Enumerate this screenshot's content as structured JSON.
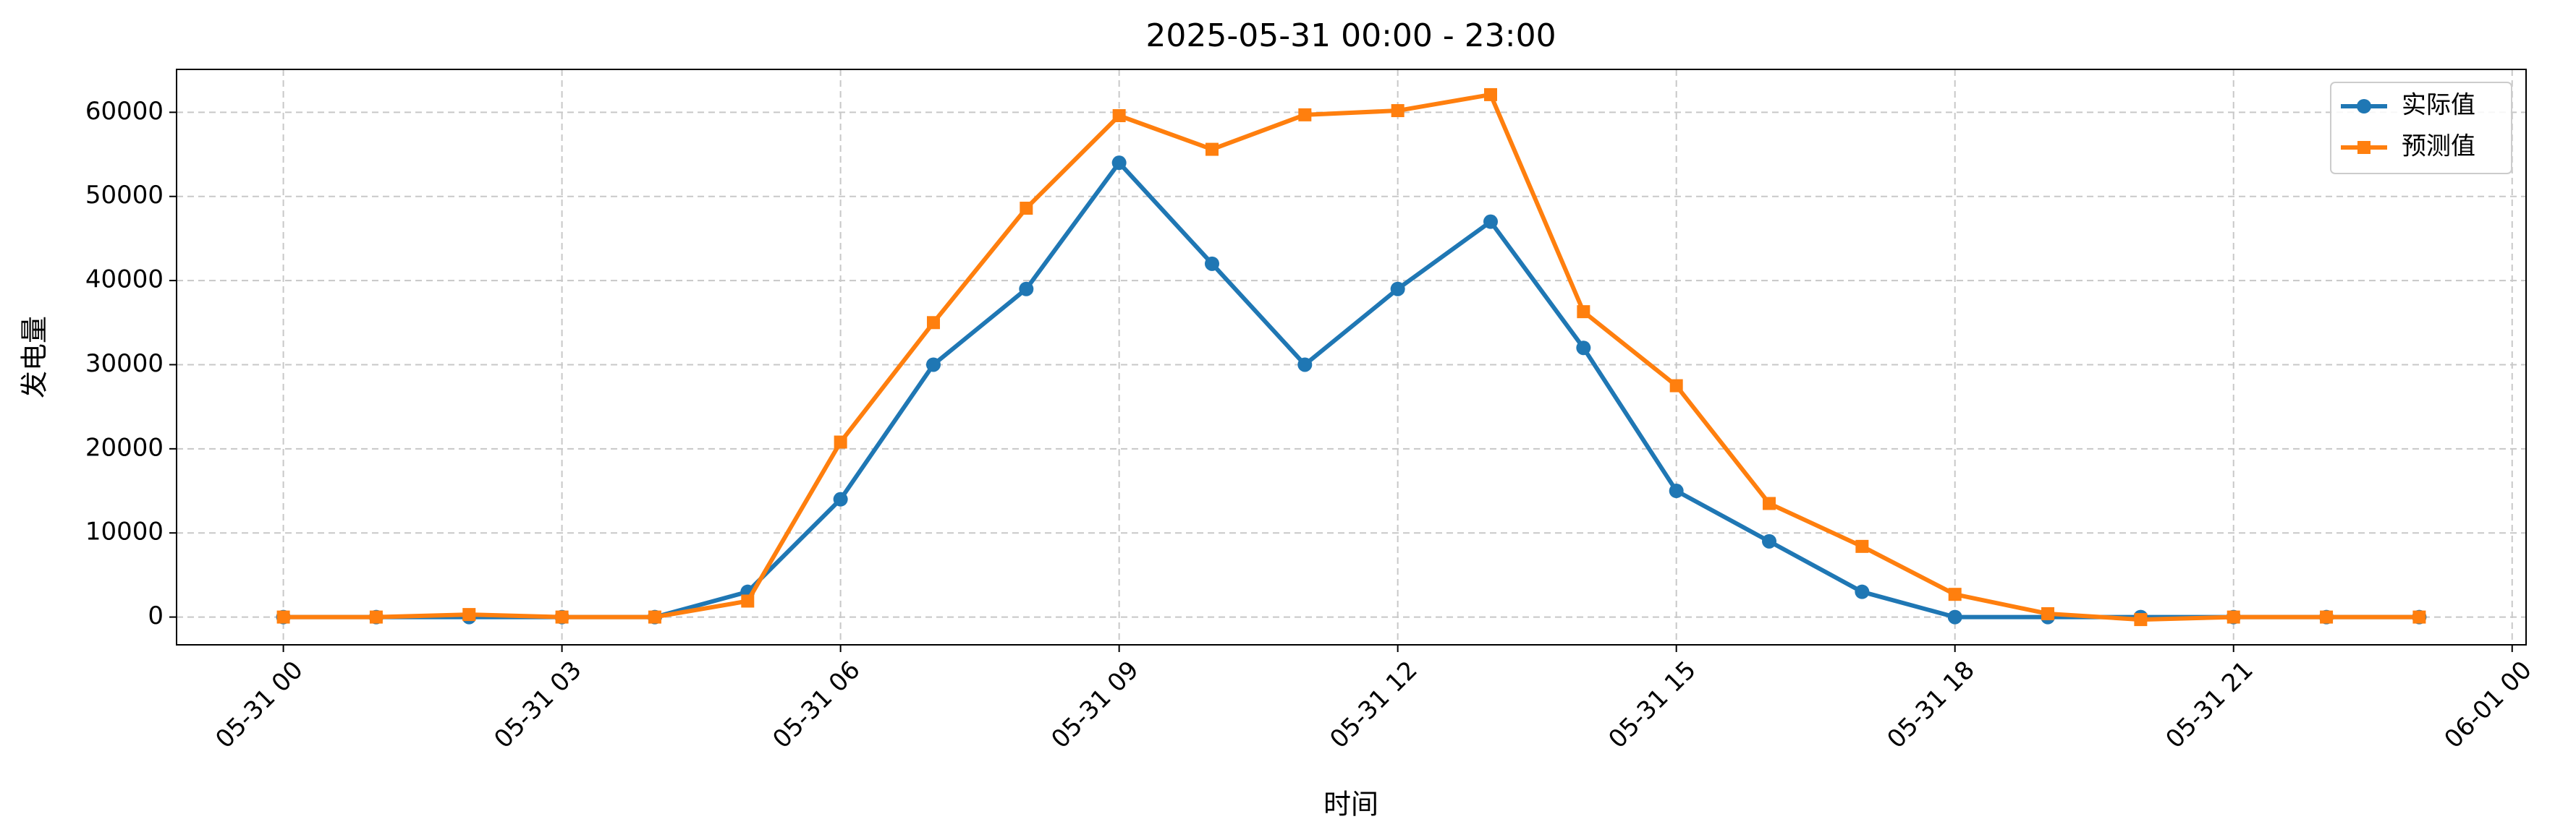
{
  "chart_data": {
    "type": "line",
    "title": "2025-05-31 00:00 - 23:00",
    "x_label": "时间",
    "y_label": "发电量",
    "x": [
      0,
      1,
      2,
      3,
      4,
      5,
      6,
      7,
      8,
      9,
      10,
      11,
      12,
      13,
      14,
      15,
      16,
      17,
      18,
      19,
      20,
      21,
      22,
      23
    ],
    "series": [
      {
        "name": "实际值",
        "color": "#1f77b4",
        "marker": "circle",
        "values": [
          0,
          0,
          0,
          0,
          0,
          3000,
          14000,
          30000,
          39000,
          54000,
          42000,
          30000,
          39000,
          47000,
          32000,
          15000,
          9000,
          3000,
          0,
          0,
          0,
          0,
          0,
          0
        ]
      },
      {
        "name": "预测值",
        "color": "#ff7f0e",
        "marker": "square",
        "values": [
          0,
          0,
          300,
          0,
          0,
          1900,
          20800,
          35000,
          48600,
          59600,
          55600,
          59700,
          60200,
          62100,
          36300,
          27500,
          13500,
          8400,
          2700,
          400,
          -300,
          0,
          0,
          0
        ]
      }
    ],
    "xlim": [
      -1.15,
      24.15
    ],
    "xticks": [
      {
        "value": 0,
        "label": "05-31 00"
      },
      {
        "value": 3,
        "label": "05-31 03"
      },
      {
        "value": 6,
        "label": "05-31 06"
      },
      {
        "value": 9,
        "label": "05-31 09"
      },
      {
        "value": 12,
        "label": "05-31 12"
      },
      {
        "value": 15,
        "label": "05-31 15"
      },
      {
        "value": 18,
        "label": "05-31 18"
      },
      {
        "value": 21,
        "label": "05-31 21"
      },
      {
        "value": 24,
        "label": "06-01 00"
      }
    ],
    "ylim": [
      -3300,
      65100
    ],
    "yticks": [
      0,
      10000,
      20000,
      30000,
      40000,
      50000,
      60000
    ],
    "grid": true,
    "legend": "upper right"
  }
}
